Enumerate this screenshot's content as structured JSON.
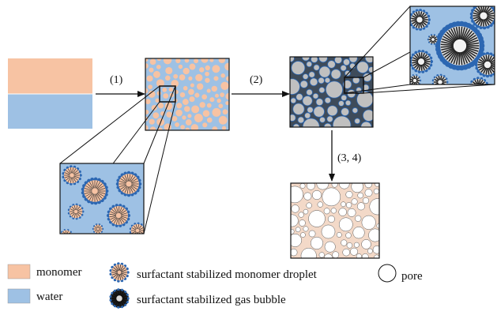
{
  "steps": {
    "step1": "(1)",
    "step2": "(2)",
    "step34": "(3, 4)"
  },
  "legend": {
    "monomer": "monomer",
    "water": "water",
    "droplet": "surfactant stabilized monomer droplet",
    "bubble": "surfactant stabilized gas bubble",
    "pore": "pore"
  },
  "colors": {
    "monomer": "#f7c3a3",
    "water": "#9ec1e4",
    "surfactant_head": "#2c67b2",
    "gas": "#c0c0c0",
    "dark_bg": "#3e4b5a",
    "pore_edge": "#e6a98d",
    "outline": "#111111"
  }
}
